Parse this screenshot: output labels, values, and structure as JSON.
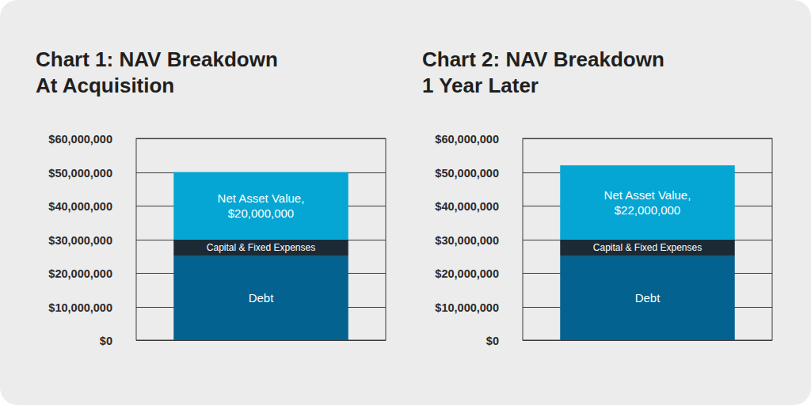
{
  "chart_data": [
    {
      "type": "bar",
      "title": "Chart 1: NAV Breakdown\nAt Acquisition",
      "categories": [
        null
      ],
      "series": [
        {
          "name": "Debt",
          "color": "#03628f",
          "values": [
            25000000
          ]
        },
        {
          "name": "Capital & Fixed Expenses",
          "color": "#1b2a35",
          "values": [
            5000000
          ]
        },
        {
          "name": "Net Asset Value,",
          "color": "#05a6d3",
          "values": [
            20000000
          ],
          "value_labels": [
            "$20,000,000"
          ],
          "data_labels": true
        }
      ],
      "ylim": [
        0,
        60000000
      ],
      "yticks": [
        {
          "value": 0,
          "label": "$0"
        },
        {
          "value": 10000000,
          "label": "$10,000,000"
        },
        {
          "value": 20000000,
          "label": "$20,000,000"
        },
        {
          "value": 30000000,
          "label": "$30,000,000"
        },
        {
          "value": 40000000,
          "label": "$40,000,000"
        },
        {
          "value": 50000000,
          "label": "$50,000,000"
        },
        {
          "value": 60000000,
          "label": "$60,000,000"
        }
      ],
      "grid": true,
      "stacked": true,
      "tick_labels": "y"
    },
    {
      "type": "bar",
      "title": "Chart 2: NAV Breakdown\n1 Year Later",
      "categories": [
        null
      ],
      "series": [
        {
          "name": "Debt",
          "color": "#03628f",
          "values": [
            25000000
          ]
        },
        {
          "name": "Capital & Fixed Expenses",
          "color": "#1b2a35",
          "values": [
            5000000
          ]
        },
        {
          "name": "Net Asset Value,",
          "color": "#05a6d3",
          "values": [
            22000000
          ],
          "value_labels": [
            "$22,000,000"
          ],
          "data_labels": true
        }
      ],
      "ylim": [
        0,
        60000000
      ],
      "yticks": [
        {
          "value": 0,
          "label": "$0"
        },
        {
          "value": 10000000,
          "label": "$10,000,000"
        },
        {
          "value": 20000000,
          "label": "$20,000,000"
        },
        {
          "value": 30000000,
          "label": "$30,000,000"
        },
        {
          "value": 40000000,
          "label": "$40,000,000"
        },
        {
          "value": 50000000,
          "label": "$50,000,000"
        },
        {
          "value": 60000000,
          "label": "$60,000,000"
        }
      ],
      "grid": true,
      "stacked": true,
      "tick_labels": "y"
    }
  ]
}
